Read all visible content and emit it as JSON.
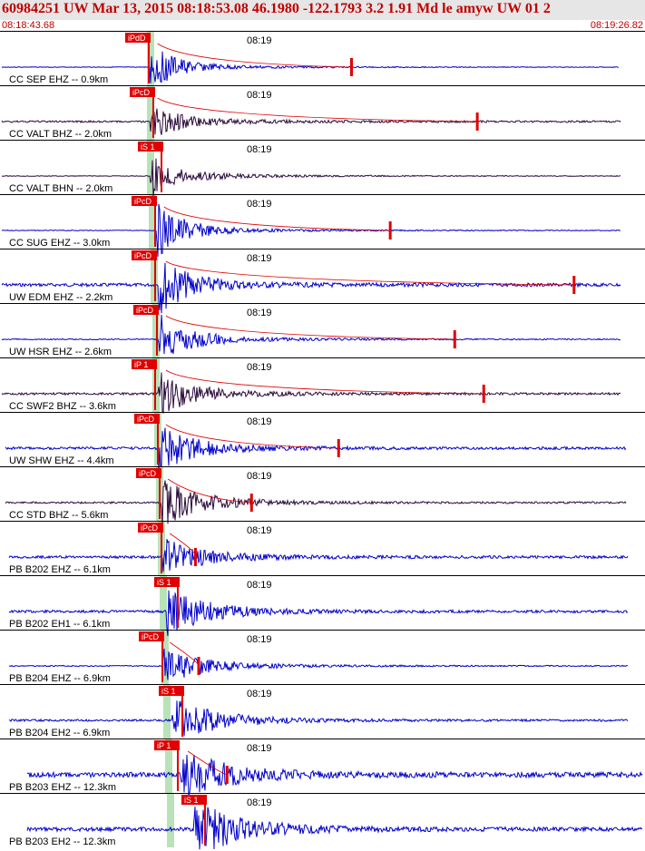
{
  "header": {
    "title": "60984251 UW Mar 13, 2015 08:18:53.08    46.1980 -122.1793  3.2 1.91 Md le amyw UW 01    2",
    "start_time": "08:18:43.68",
    "end_time": "08:19:26.82"
  },
  "colors": {
    "header_bg": "#e6e6e6",
    "header_text": "#c00000",
    "trace_blue": "#0000cc",
    "trace_dark": "#2a0a3a",
    "pick_red": "#e00000",
    "shade_green": "#b9e2b9"
  },
  "traces": [
    {
      "label": "CC SEP EHZ -- 0.9km",
      "time_label": "08:19",
      "pick": "iPdD",
      "color": "blue",
      "coda_end": 0.545
    },
    {
      "label": "CC VALT BHZ -- 2.0km",
      "time_label": "08:19",
      "pick": "iPcD",
      "color": "dark",
      "coda_end": 0.74
    },
    {
      "label": "CC VALT BHN -- 2.0km",
      "time_label": "08:19",
      "pick": "iS 1",
      "color": "dark",
      "coda_end": null
    },
    {
      "label": "CC SUG EHZ -- 3.0km",
      "time_label": "08:19",
      "pick": "iPcD",
      "color": "blue",
      "coda_end": 0.605
    },
    {
      "label": "UW EDM EHZ -- 2.2km",
      "time_label": "08:19",
      "pick": "iPcD",
      "color": "blue",
      "coda_end": 0.89
    },
    {
      "label": "UW HSR EHZ -- 2.6km",
      "time_label": "08:19",
      "pick": "iPcD",
      "color": "blue",
      "coda_end": 0.705
    },
    {
      "label": "CC SWF2 BHZ -- 3.6km",
      "time_label": "08:19",
      "pick": "iP 1",
      "color": "dark",
      "coda_end": 0.75
    },
    {
      "label": "UW SHW EHZ -- 4.4km",
      "time_label": "08:19",
      "pick": "iPcD",
      "color": "blue",
      "coda_end": 0.525
    },
    {
      "label": "CC STD BHZ -- 5.6km",
      "time_label": "08:19",
      "pick": "iPcD",
      "color": "dark",
      "coda_end": 0.39
    },
    {
      "label": "PB B202 EHZ -- 6.1km",
      "time_label": "08:19",
      "pick": "iPcD",
      "color": "blue",
      "coda_end": 0.303
    },
    {
      "label": "PB B202 EH1 -- 6.1km",
      "time_label": "08:19",
      "pick": "iS 1",
      "color": "blue",
      "coda_end": null
    },
    {
      "label": "PB B204 EHZ -- 6.9km",
      "time_label": "08:19",
      "pick": "iPcD",
      "color": "blue",
      "coda_end": 0.308
    },
    {
      "label": "PB B204 EH2 -- 6.9km",
      "time_label": "08:19",
      "pick": "iS 1",
      "color": "blue",
      "coda_end": null
    },
    {
      "label": "PB B203 EHZ -- 12.3km",
      "time_label": "08:19",
      "pick": "iP 1",
      "color": "blue",
      "coda_end": 0.352
    },
    {
      "label": "PB B203 EH2 -- 12.3km",
      "time_label": "08:19",
      "pick": "iS 1",
      "color": "blue",
      "coda_end": null
    }
  ]
}
